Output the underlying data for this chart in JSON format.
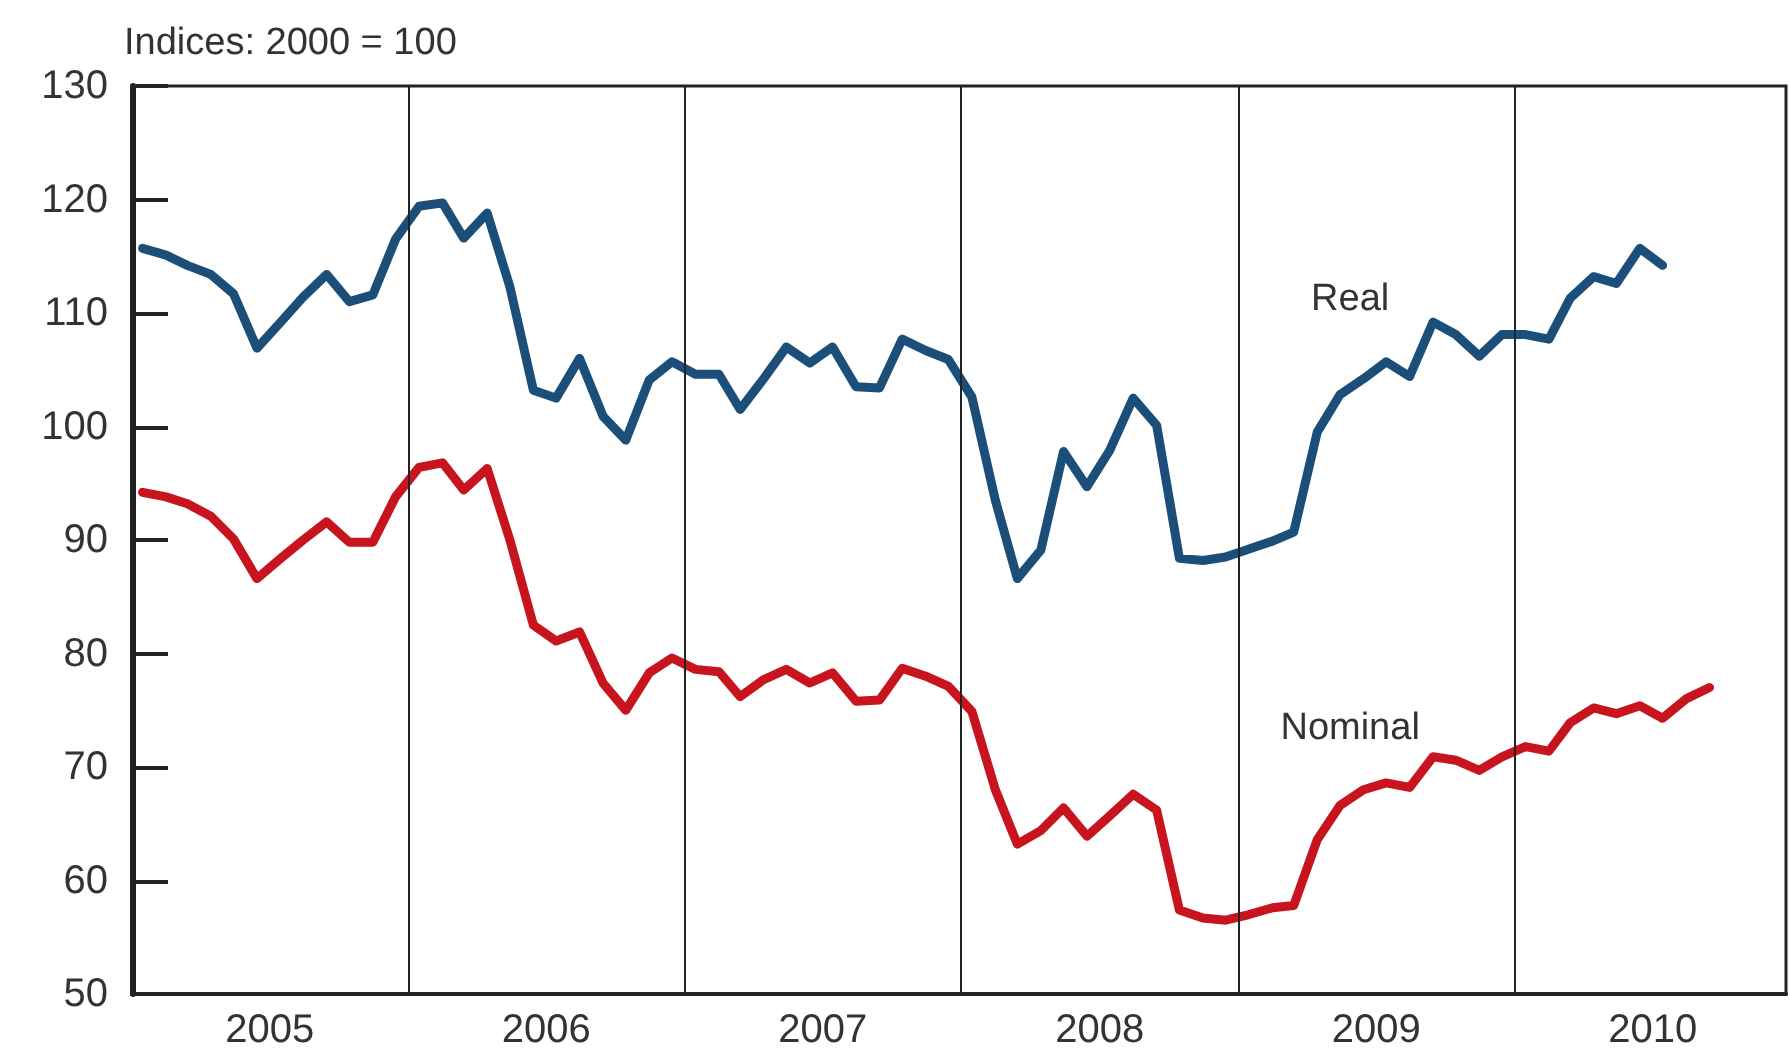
{
  "chart_data": {
    "type": "line",
    "ylabel": "Indices: 2000 = 100",
    "x": [
      "2005-01-15",
      "2005-02-15",
      "2005-03-15",
      "2005-04-15",
      "2005-05-15",
      "2005-06-15",
      "2005-07-15",
      "2005-08-15",
      "2005-09-15",
      "2005-10-15",
      "2005-11-15",
      "2005-12-15",
      "2006-01-15",
      "2006-02-15",
      "2006-03-15",
      "2006-04-15",
      "2006-05-15",
      "2006-06-15",
      "2006-07-15",
      "2006-08-15",
      "2006-09-15",
      "2006-10-15",
      "2006-11-15",
      "2006-12-15",
      "2007-01-15",
      "2007-02-15",
      "2007-03-15",
      "2007-04-15",
      "2007-05-15",
      "2007-06-15",
      "2007-07-15",
      "2007-08-15",
      "2007-09-15",
      "2007-10-15",
      "2007-11-15",
      "2007-12-15",
      "2008-01-15",
      "2008-02-15",
      "2008-03-15",
      "2008-04-15",
      "2008-05-15",
      "2008-06-15",
      "2008-07-15",
      "2008-08-15",
      "2008-09-15",
      "2008-10-15",
      "2008-11-15",
      "2008-12-15",
      "2009-01-15",
      "2009-02-15",
      "2009-03-15",
      "2009-04-15",
      "2009-05-15",
      "2009-06-15",
      "2009-07-15",
      "2009-08-15",
      "2009-09-15",
      "2009-10-15",
      "2009-11-15",
      "2009-12-15",
      "2010-01-15",
      "2010-02-15",
      "2010-03-15",
      "2010-04-15",
      "2010-05-15",
      "2010-06-15",
      "2010-07-15",
      "2010-08-15",
      "2010-09-15"
    ],
    "series": [
      {
        "name": "Real",
        "color": "#1b4f7a",
        "values": [
          115.7,
          115.1,
          114.2,
          113.4,
          111.7,
          106.9,
          109.1,
          111.4,
          113.4,
          111.0,
          111.6,
          116.5,
          119.4,
          119.7,
          116.6,
          118.8,
          112.3,
          103.2,
          102.5,
          106.0,
          100.9,
          98.8,
          104.1,
          105.7,
          104.6,
          104.6,
          101.5,
          104.2,
          107.0,
          105.6,
          107.0,
          103.5,
          103.4,
          107.7,
          106.7,
          105.9,
          102.6,
          93.5,
          86.6,
          89.1,
          97.8,
          94.7,
          97.9,
          102.5,
          100.1,
          88.4,
          88.2,
          88.5,
          89.2,
          89.9,
          90.7,
          99.5,
          102.8,
          104.2,
          105.7,
          104.4,
          109.2,
          108.1,
          106.2,
          108.1,
          108.1,
          107.7,
          111.3,
          113.2,
          112.6,
          115.7,
          114.2,
          null,
          null
        ]
      },
      {
        "name": "Nominal",
        "color": "#c8141e",
        "values": [
          94.2,
          93.8,
          93.2,
          92.1,
          90.1,
          86.6,
          88.3,
          90.0,
          91.6,
          89.8,
          89.8,
          93.8,
          96.4,
          96.8,
          94.4,
          96.3,
          90.0,
          82.5,
          81.1,
          81.9,
          77.4,
          75.0,
          78.3,
          79.6,
          78.6,
          78.4,
          76.2,
          77.7,
          78.6,
          77.4,
          78.3,
          75.8,
          75.9,
          78.7,
          78.0,
          77.1,
          74.9,
          68.0,
          63.2,
          64.4,
          66.4,
          63.9,
          65.7,
          67.6,
          66.2,
          57.4,
          56.7,
          56.5,
          57.0,
          57.6,
          57.8,
          63.6,
          66.6,
          68.0,
          68.6,
          68.2,
          70.9,
          70.6,
          69.7,
          70.9,
          71.8,
          71.4,
          73.9,
          75.2,
          74.7,
          75.4,
          74.3,
          76.0,
          77.0
        ]
      }
    ],
    "ylim": [
      50,
      130
    ],
    "yticks": [
      50,
      60,
      70,
      80,
      90,
      100,
      110,
      120,
      130
    ],
    "xlim": [
      "2005-01-01",
      "2010-12-25"
    ],
    "xticks": [
      {
        "value": "2005-07-02",
        "label": "2005"
      },
      {
        "value": "2006-07-02",
        "label": "2006"
      },
      {
        "value": "2007-07-02",
        "label": "2007"
      },
      {
        "value": "2008-07-02",
        "label": "2008"
      },
      {
        "value": "2009-07-02",
        "label": "2009"
      },
      {
        "value": "2010-07-02",
        "label": "2010"
      }
    ],
    "ref_lines": [
      {
        "axis": "x",
        "value": "2006-01-01",
        "color": "#222222"
      },
      {
        "axis": "x",
        "value": "2007-01-01",
        "color": "#222222"
      },
      {
        "axis": "x",
        "value": "2008-01-01",
        "color": "#222222"
      },
      {
        "axis": "x",
        "value": "2009-01-01",
        "color": "#222222"
      },
      {
        "axis": "x",
        "value": "2010-01-01",
        "color": "#222222"
      }
    ],
    "line_style": "solid",
    "marker": "none",
    "grid": false,
    "legend": false
  }
}
